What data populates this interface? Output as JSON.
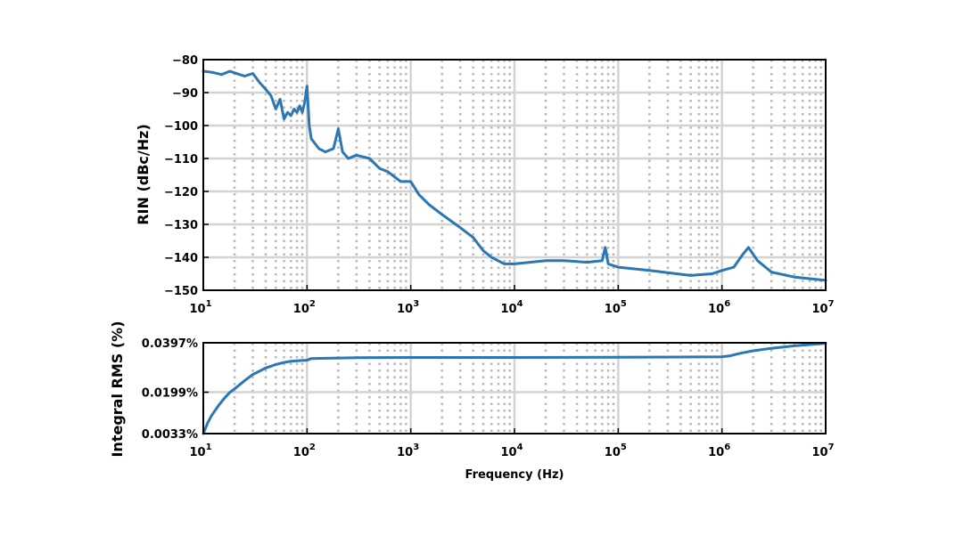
{
  "chart_data": [
    {
      "type": "line",
      "title": "",
      "xlabel": "",
      "ylabel": "RIN (dBc/Hz)",
      "xscale": "log",
      "xlim": [
        10,
        10000000
      ],
      "ylim": [
        -150,
        -80
      ],
      "grid": true,
      "minor_grid": "dotted",
      "color": "#2a77b4",
      "yticks": [
        "−80",
        "−90",
        "−100",
        "−110",
        "−120",
        "−130",
        "−140",
        "−150"
      ],
      "xticks": [
        {
          "base": "10",
          "exp": "1"
        },
        {
          "base": "10",
          "exp": "2"
        },
        {
          "base": "10",
          "exp": "3"
        },
        {
          "base": "10",
          "exp": "4"
        },
        {
          "base": "10",
          "exp": "5"
        },
        {
          "base": "10",
          "exp": "6"
        },
        {
          "base": "10",
          "exp": "7"
        }
      ],
      "series": [
        {
          "x": [
            10,
            12,
            15,
            18,
            20,
            25,
            30,
            35,
            40,
            45,
            50,
            55,
            60,
            65,
            70,
            75,
            80,
            85,
            90,
            95,
            100,
            105,
            110,
            130,
            150,
            180,
            200,
            220,
            250,
            300,
            400,
            500,
            600,
            800,
            1000,
            1200,
            1500,
            2000,
            3000,
            4000,
            5000,
            6000,
            8000,
            10000,
            20000,
            30000,
            50000,
            70000,
            75000,
            80000,
            100000,
            200000,
            500000,
            800000,
            1000000,
            1300000,
            1600000,
            1800000,
            2200000,
            3000000,
            5000000,
            10000000
          ],
          "y": [
            -83.5,
            -83.8,
            -84.5,
            -83.5,
            -84,
            -85,
            -84.2,
            -87,
            -89,
            -91,
            -95,
            -92,
            -98,
            -96,
            -97,
            -95,
            -96,
            -94,
            -96,
            -93,
            -88,
            -100,
            -104,
            -107,
            -108,
            -107,
            -101,
            -108,
            -110,
            -109,
            -110,
            -113,
            -114,
            -117,
            -117,
            -121,
            -124,
            -127,
            -131,
            -134,
            -138,
            -140,
            -142,
            -142,
            -141,
            -141,
            -141.5,
            -141,
            -137,
            -142,
            -143,
            -144,
            -145.5,
            -145,
            -144,
            -143,
            -139,
            -137,
            -141,
            -144.5,
            -146,
            -147
          ]
        }
      ]
    },
    {
      "type": "line",
      "title": "",
      "xlabel": "Frequency (Hz)",
      "ylabel": "Integral RMS (%)",
      "xscale": "log",
      "xlim": [
        10,
        10000000
      ],
      "ylim": [
        0.0033,
        0.0397
      ],
      "grid": true,
      "minor_grid": "dotted",
      "color": "#2a77b4",
      "yticks": [
        "0.0397%",
        "0.0199%",
        "0.0033%"
      ],
      "xticks": [
        {
          "base": "10",
          "exp": "1"
        },
        {
          "base": "10",
          "exp": "2"
        },
        {
          "base": "10",
          "exp": "3"
        },
        {
          "base": "10",
          "exp": "4"
        },
        {
          "base": "10",
          "exp": "5"
        },
        {
          "base": "10",
          "exp": "6"
        },
        {
          "base": "10",
          "exp": "7"
        }
      ],
      "series": [
        {
          "x": [
            10,
            11,
            12,
            14,
            16,
            18,
            20,
            25,
            30,
            40,
            50,
            60,
            70,
            80,
            90,
            100,
            110,
            150,
            300,
            1000,
            10000,
            100000,
            1000000,
            1200000,
            1500000,
            2000000,
            3000000,
            5000000,
            10000000
          ],
          "y": [
            0.0033,
            0.0075,
            0.0105,
            0.0145,
            0.0175,
            0.0198,
            0.0212,
            0.0245,
            0.027,
            0.0296,
            0.031,
            0.0318,
            0.0323,
            0.0325,
            0.0326,
            0.0327,
            0.0334,
            0.0335,
            0.0337,
            0.0338,
            0.0338,
            0.0339,
            0.0341,
            0.0345,
            0.0355,
            0.0365,
            0.0375,
            0.0385,
            0.0395
          ]
        }
      ]
    }
  ]
}
